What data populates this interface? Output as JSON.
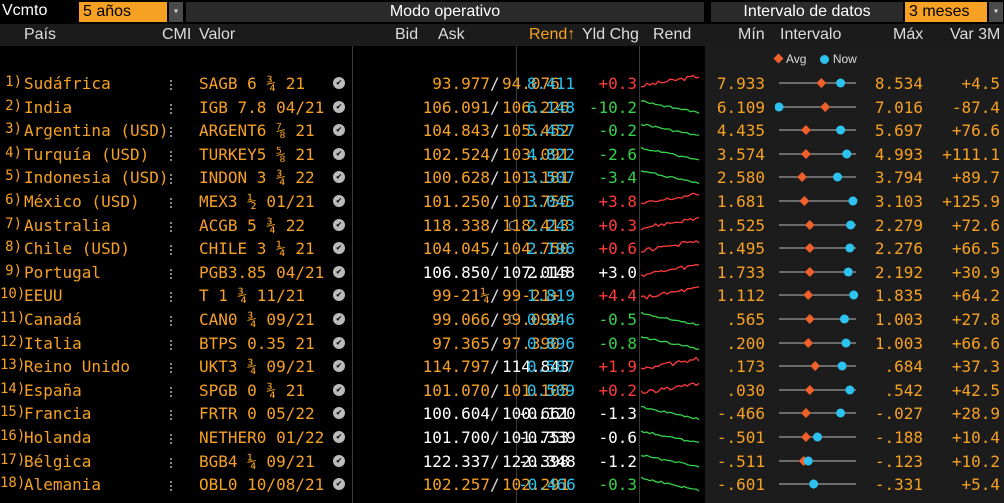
{
  "toolbar": {
    "vcmto_label": "Vcmto",
    "vcmto_value": "5 años",
    "mode_label": "Modo operativo",
    "interval_label": "Intervalo de datos",
    "interval_value": "3 meses"
  },
  "columns": {
    "pais": "País",
    "cmi": "CMI",
    "valor": "Valor",
    "bid": "Bid",
    "ask": "Ask",
    "rend_sort": "Rend↑",
    "yld_chg": "Yld Chg",
    "rend_chart": "Rend",
    "min": "Mín",
    "intervalo": "Intervalo",
    "max": "Máx",
    "var": "Var 3M"
  },
  "legend": {
    "avg": "Avg",
    "now": "Now"
  },
  "colors": {
    "accent": "#f7a124",
    "rend": "#2cc3f0",
    "up": "#ff3b3b",
    "down": "#35d24a",
    "avg_marker": "#f0602a",
    "now_marker": "#2cc3f0"
  },
  "rows": [
    {
      "num": "1)",
      "country": "Sudáfrica",
      "valor": "SAGB 6 ¾ 21",
      "bid": "93.977",
      "ask": "94.076",
      "rend": "8.411",
      "chg": "+0.3",
      "min": "7.933",
      "max": "8.534",
      "var": "+4.5",
      "avg": 0.55,
      "now": 0.8,
      "cflag": ""
    },
    {
      "num": "2)",
      "country": "India",
      "valor": "IGB 7.8 04/21",
      "bid": "106.091",
      "ask": "106.226",
      "rend": "6.148",
      "chg": "-10.2",
      "min": "6.109",
      "max": "7.016",
      "var": "-87.4",
      "avg": 0.6,
      "now": 0.0,
      "cflag": ""
    },
    {
      "num": "3)",
      "country": "Argentina (USD)",
      "valor": "ARGENT6 ⅞ 21",
      "bid": "104.843",
      "ask": "105.452",
      "rend": "5.457",
      "chg": "-0.2",
      "min": "4.435",
      "max": "5.697",
      "var": "+76.6",
      "avg": 0.35,
      "now": 0.8,
      "cflag": ""
    },
    {
      "num": "4)",
      "country": "Turquía (USD)",
      "valor": "TURKEY5 ⅝ 21",
      "bid": "102.524",
      "ask": "103.091",
      "rend": "4.822",
      "chg": "-2.6",
      "min": "3.574",
      "max": "4.993",
      "var": "+111.1",
      "avg": 0.35,
      "now": 0.88,
      "cflag": ""
    },
    {
      "num": "5)",
      "country": "Indonesia (USD)",
      "valor": "INDON 3 ¾ 22",
      "bid": "100.628",
      "ask": "101.181",
      "rend": "3.507",
      "chg": "-3.4",
      "min": "2.580",
      "max": "3.794",
      "var": "+89.7",
      "avg": 0.3,
      "now": 0.76,
      "cflag": ""
    },
    {
      "num": "6)",
      "country": "México (USD)",
      "valor": "MEX3 ½ 01/21",
      "bid": "101.250",
      "ask": "101.750",
      "rend": "3.045",
      "chg": "+3.8",
      "min": "1.681",
      "max": "3.103",
      "var": "+125.9",
      "avg": 0.33,
      "now": 0.96,
      "cflag": ""
    },
    {
      "num": "7)",
      "country": "Australia",
      "valor": "ACGB 5 ¾ 22",
      "bid": "118.338",
      "ask": "118.413",
      "rend": "2.243",
      "chg": "+0.3",
      "min": "1.525",
      "max": "2.279",
      "var": "+72.6",
      "avg": 0.4,
      "now": 0.93,
      "cflag": "C"
    },
    {
      "num": "8)",
      "country": "Chile (USD)",
      "valor": "CHILE 3 ¼ 21",
      "bid": "104.045",
      "ask": "104.750",
      "rend": "2.196",
      "chg": "+0.6",
      "min": "1.495",
      "max": "2.276",
      "var": "+66.5",
      "avg": 0.4,
      "now": 0.92,
      "cflag": ""
    },
    {
      "num": "9)",
      "country": "Portugal",
      "valor": "PGB3.85 04/21",
      "bid": "106.850",
      "ask": "107.015",
      "rend": "2.148",
      "chg": "+3.0",
      "min": "1.733",
      "max": "2.192",
      "var": "+30.9",
      "avg": 0.4,
      "now": 0.9,
      "cflag": "",
      "white": true
    },
    {
      "num": "10)",
      "country": "EEUU",
      "valor": "T 1 ¾ 11/21",
      "bid": "99-21¼",
      "ask": "99-21+",
      "rend": "1.819",
      "chg": "+4.4",
      "min": "1.112",
      "max": "1.835",
      "var": "+64.2",
      "avg": 0.38,
      "now": 0.97,
      "cflag": ""
    },
    {
      "num": "11)",
      "country": "Canadá",
      "valor": "CAN0 ¾ 09/21",
      "bid": "99.066",
      "ask": "99.090",
      "rend": "0.946",
      "chg": "-0.5",
      "min": ".565",
      "max": "1.003",
      "var": "+27.8",
      "avg": 0.4,
      "now": 0.85,
      "cflag": "C"
    },
    {
      "num": "12)",
      "country": "Italia",
      "valor": "BTPS 0.35 21",
      "bid": "97.365",
      "ask": "97.390",
      "rend": "0.896",
      "chg": "-0.8",
      "min": ".200",
      "max": "1.003",
      "var": "+66.6",
      "avg": 0.38,
      "now": 0.87,
      "cflag": ""
    },
    {
      "num": "13)",
      "country": "Reino Unido",
      "valor": "UKT3 ¾ 09/21",
      "bid": "114.797",
      "ask": "114.843",
      "rend": "0.587",
      "chg": "+1.9",
      "min": ".173",
      "max": ".684",
      "var": "+37.3",
      "avg": 0.47,
      "now": 0.82,
      "cflag": "",
      "whiteask": true
    },
    {
      "num": "14)",
      "country": "España",
      "valor": "SPGB 0 ¾ 21",
      "bid": "101.070",
      "ask": "101.105",
      "rend": "0.509",
      "chg": "+0.2",
      "min": ".030",
      "max": ".542",
      "var": "+42.5",
      "avg": 0.4,
      "now": 0.92,
      "cflag": ""
    },
    {
      "num": "15)",
      "country": "Francia",
      "valor": "FRTR 0 05/22",
      "bid": "100.604",
      "ask": "100.661",
      "rend": "-0.120",
      "chg": "-1.3",
      "min": "-.466",
      "max": "-.027",
      "var": "+28.9",
      "avg": 0.35,
      "now": 0.8,
      "cflag": "",
      "white": true
    },
    {
      "num": "16)",
      "country": "Holanda",
      "valor": "NETHER0 01/22",
      "bid": "101.700",
      "ask": "101.753",
      "rend": "-0.339",
      "chg": "-0.6",
      "min": "-.501",
      "max": "-.188",
      "var": "+10.4",
      "avg": 0.35,
      "now": 0.5,
      "cflag": "",
      "white": true
    },
    {
      "num": "17)",
      "country": "Bélgica",
      "valor": "BGB4 ¼ 09/21",
      "bid": "122.337",
      "ask": "122.398",
      "rend": "-0.348",
      "chg": "-1.2",
      "min": "-.511",
      "max": "-.123",
      "var": "+10.2",
      "avg": 0.32,
      "now": 0.38,
      "cflag": "",
      "white": true
    },
    {
      "num": "18)",
      "country": "Alemania",
      "valor": "OBL0 10/08/21",
      "bid": "102.257",
      "ask": "102.291",
      "rend": "-0.466",
      "chg": "-0.3",
      "min": "-.601",
      "max": "-.331",
      "var": "+5.4",
      "avg": 0.45,
      "now": 0.45,
      "cflag": ""
    }
  ]
}
